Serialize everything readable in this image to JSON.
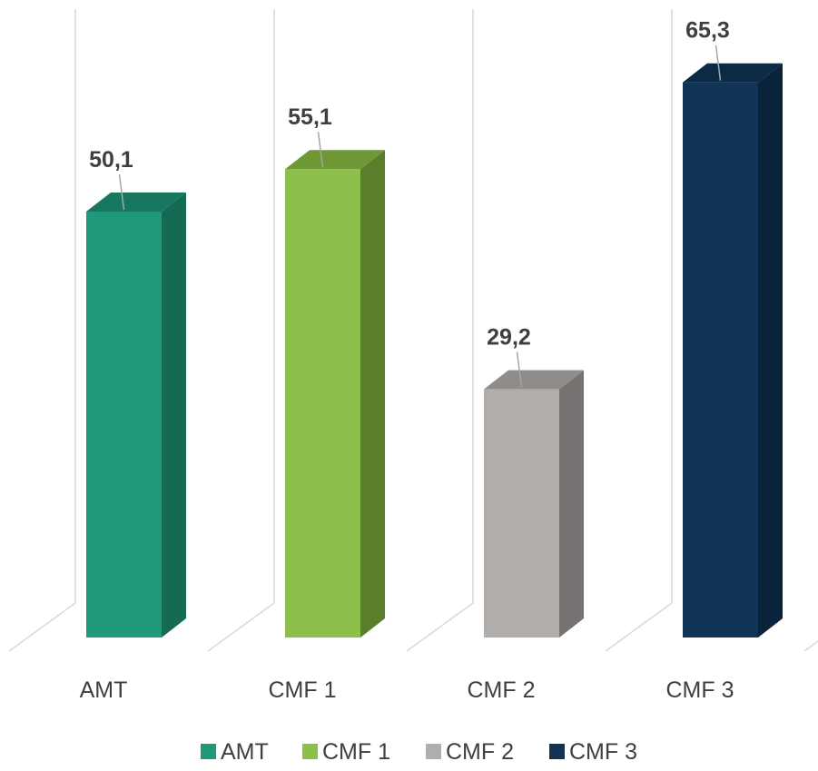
{
  "chart_data": {
    "type": "bar",
    "categories": [
      "AMT",
      "CMF 1",
      "CMF 2",
      "CMF 3"
    ],
    "values": [
      50.1,
      55.1,
      29.2,
      65.3
    ],
    "data_labels": [
      "50,1",
      "55,1",
      "29,2",
      "65,3"
    ],
    "colors": {
      "front": [
        "#1e9a7a",
        "#8cc04a",
        "#b0adab",
        "#0f3456"
      ],
      "top": [
        "#18775f",
        "#6e9835",
        "#8f8c8a",
        "#0b2a45"
      ],
      "side": [
        "#156a54",
        "#5a7f2c",
        "#767372",
        "#09233b"
      ]
    },
    "legend": {
      "position": "bottom",
      "entries": [
        "AMT",
        "CMF 1",
        "CMF 2",
        "CMF 3"
      ]
    },
    "style": "3d-column",
    "ylim": [
      0,
      70
    ],
    "gridlines": "category-separators",
    "title": "",
    "xlabel": "",
    "ylabel": ""
  }
}
